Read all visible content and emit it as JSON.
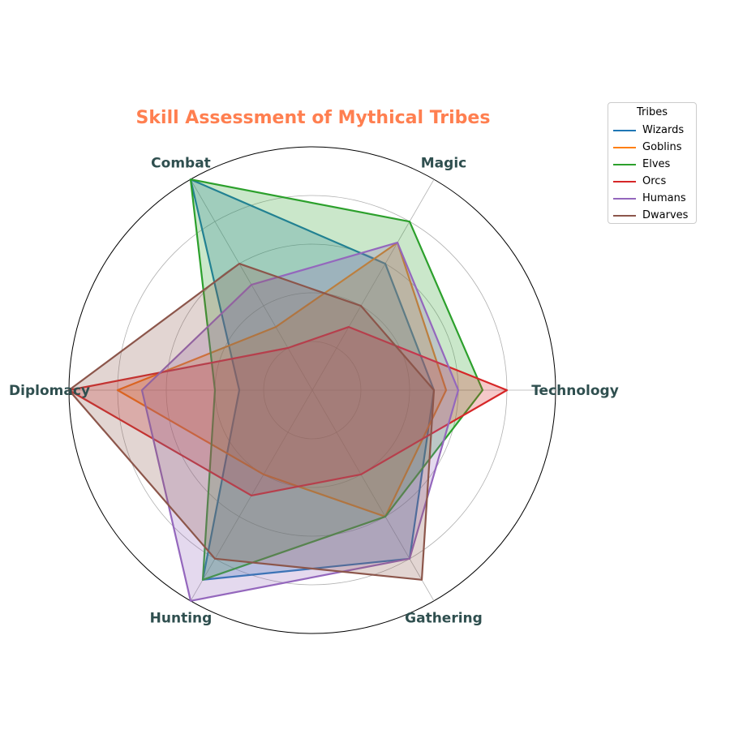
{
  "chart_data": {
    "type": "radar",
    "title": "Skill Assessment of Mythical Tribes",
    "title_color": "#ff7f50",
    "axes": [
      "Technology",
      "Magic",
      "Combat",
      "Diplomacy",
      "Hunting",
      "Gathering"
    ],
    "axis_label_color": "#2f4f4f",
    "rmax": 10,
    "rticks": [
      2,
      4,
      6,
      8,
      10
    ],
    "grid": true,
    "legend": {
      "title": "Tribes",
      "placement": "top-right, outside plot"
    },
    "series": [
      {
        "name": "Wizards",
        "color": "#1f77b4",
        "values": [
          5,
          6,
          10,
          3,
          9,
          8
        ]
      },
      {
        "name": "Goblins",
        "color": "#ff7f0e",
        "values": [
          5.5,
          7,
          3,
          8,
          4,
          6
        ]
      },
      {
        "name": "Elves",
        "color": "#2ca02c",
        "values": [
          7,
          8,
          10,
          4,
          9,
          6
        ]
      },
      {
        "name": "Orcs",
        "color": "#d62728",
        "values": [
          8,
          3,
          2,
          10,
          5,
          4
        ]
      },
      {
        "name": "Humans",
        "color": "#9467bd",
        "values": [
          6,
          7,
          5,
          7,
          10,
          8
        ]
      },
      {
        "name": "Dwarves",
        "color": "#8c564b",
        "values": [
          5,
          4,
          6,
          10,
          8,
          9
        ]
      }
    ]
  }
}
